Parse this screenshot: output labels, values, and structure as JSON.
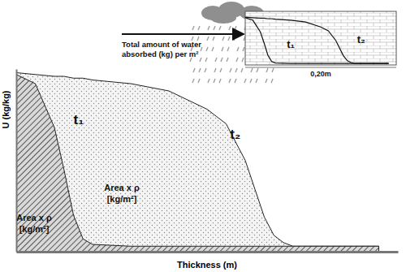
{
  "chart_data": {
    "type": "area",
    "x_label": "Thickness (m)",
    "y_label": "U (kg/kg)",
    "x": [
      0,
      0.01,
      0.02,
      0.025,
      0.03,
      0.035,
      0.04,
      0.06,
      0.08,
      0.1,
      0.11,
      0.12,
      0.13,
      0.135,
      0.14,
      0.145,
      0.15,
      0.16,
      0.19
    ],
    "series": [
      {
        "name": "t₁",
        "color": "#555555",
        "values": [
          0.97,
          0.92,
          0.68,
          0.45,
          0.2,
          0.07,
          0.04,
          0.03,
          0.03,
          0.03,
          0.03,
          0.03,
          0.03,
          0.03,
          0.03,
          0.03,
          0.03,
          0.03,
          0.03
        ]
      },
      {
        "name": "t₂",
        "color": "#8a8a8a",
        "values": [
          0.98,
          0.97,
          0.96,
          0.96,
          0.95,
          0.95,
          0.94,
          0.92,
          0.88,
          0.78,
          0.7,
          0.5,
          0.19,
          0.09,
          0.05,
          0.03,
          0.03,
          0.03,
          0.03
        ]
      }
    ],
    "xlim": [
      0,
      0.2
    ],
    "ylim": [
      0,
      1
    ],
    "tick_labels": false,
    "annotations": [
      "Area x ρ\n[kg/m²]",
      "Area x ρ\n[kg/m²]",
      "Total amount of water\nabsorbed (kg) per m²",
      "0,20m"
    ]
  }
}
